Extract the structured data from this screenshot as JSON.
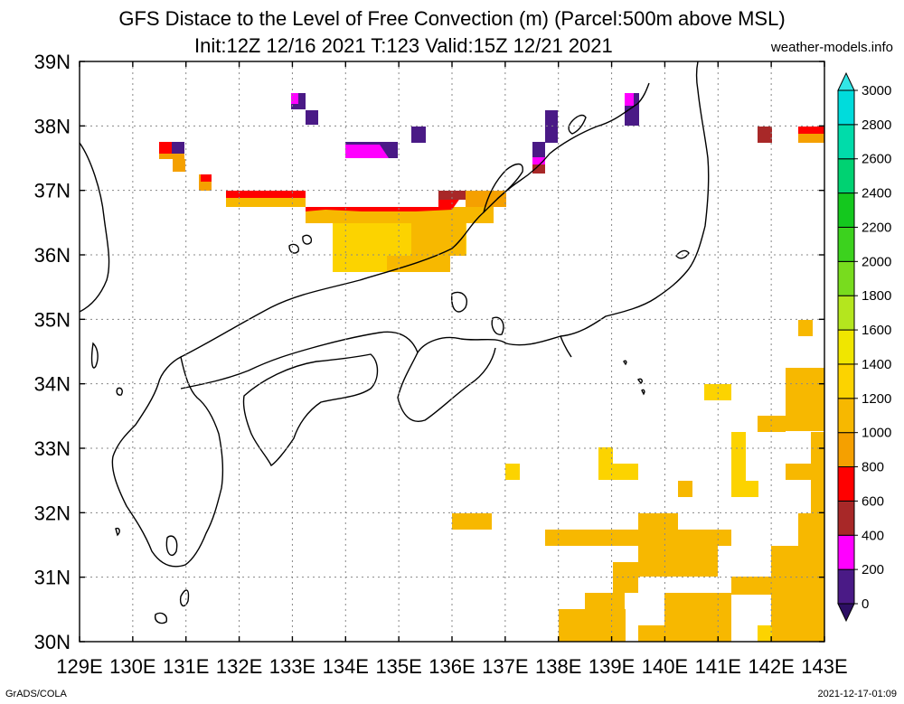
{
  "title": "GFS Distace to the Level of Free Convection (m) (Parcel:500m above MSL)",
  "subtitle": "Init:12Z 12/16 2021 T:123 Valid:15Z 12/21 2021",
  "site": "weather-models.info",
  "footer_left": "GrADS/COLA",
  "footer_right": "2021-12-17-01:09",
  "map": {
    "lon_range": [
      129,
      143
    ],
    "lat_range": [
      30,
      39
    ],
    "lon_ticks": [
      "129E",
      "130E",
      "131E",
      "132E",
      "133E",
      "134E",
      "135E",
      "136E",
      "137E",
      "138E",
      "139E",
      "140E",
      "141E",
      "142E",
      "143E"
    ],
    "lat_ticks": [
      "30N",
      "31N",
      "32N",
      "33N",
      "34N",
      "35N",
      "36N",
      "37N",
      "38N",
      "39N"
    ]
  },
  "colorbar": {
    "labels": [
      "0",
      "200",
      "400",
      "600",
      "800",
      "1000",
      "1200",
      "1400",
      "1600",
      "1800",
      "2000",
      "2200",
      "2400",
      "2600",
      "2800",
      "3000"
    ],
    "colors": [
      "#4a1a86",
      "#ff00ff",
      "#a82828",
      "#ff0000",
      "#f5a000",
      "#f7b800",
      "#fcd300",
      "#f0e600",
      "#b4e61e",
      "#78dc1e",
      "#3cd21e",
      "#14c81e",
      "#00d272",
      "#00dcaa",
      "#00dcdc",
      "#3cf0f0"
    ],
    "under_color": "#2d0f64",
    "over_color": "#32e6e6"
  }
}
